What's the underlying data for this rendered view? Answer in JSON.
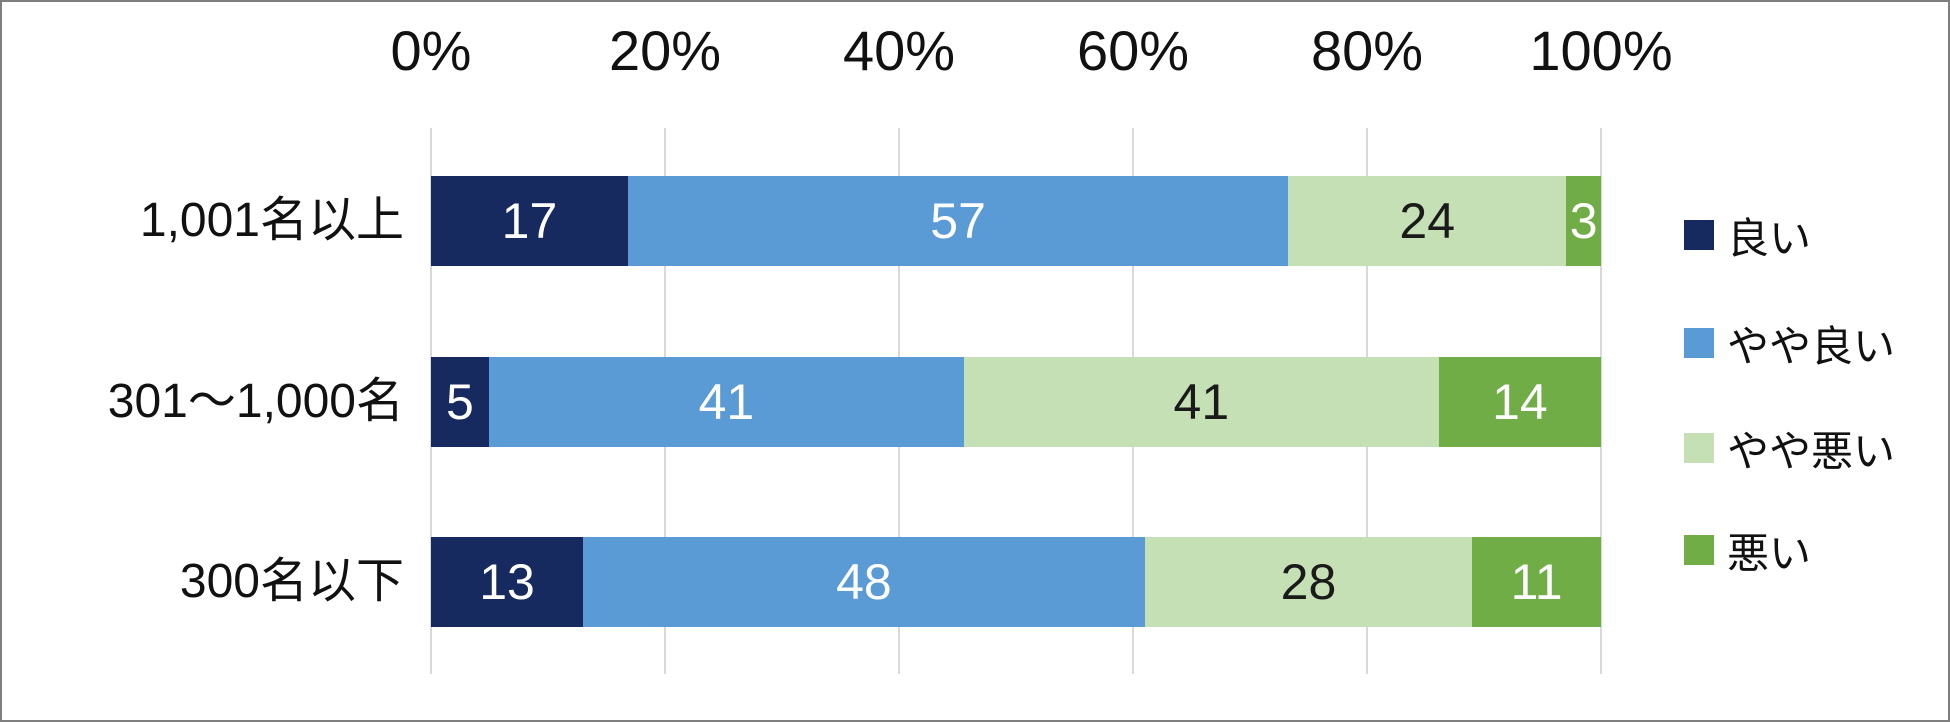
{
  "chart_data": {
    "type": "bar",
    "variant": "horizontal-stacked-100pct",
    "title": "",
    "categories": [
      "1,001名以上",
      "301～1,000名",
      "300名以下"
    ],
    "series": [
      {
        "name": "良い",
        "color": "#162A5F",
        "label_color": "#FFFFFF",
        "values": [
          17,
          5,
          13
        ]
      },
      {
        "name": "やや良い",
        "color": "#5B9BD5",
        "label_color": "#FFFFFF",
        "values": [
          57,
          41,
          48
        ]
      },
      {
        "name": "やや悪い",
        "color": "#C5E0B4",
        "label_color": "#1A1A1A",
        "values": [
          24,
          41,
          28
        ]
      },
      {
        "name": "悪い",
        "color": "#70AD47",
        "label_color": "#FFFFFF",
        "values": [
          3,
          14,
          11
        ]
      }
    ],
    "x_axis": {
      "position": "top",
      "range_pct": [
        0,
        100
      ],
      "tick_labels": [
        "0%",
        "20%",
        "40%",
        "60%",
        "80%",
        "100%"
      ]
    },
    "legend": {
      "position": "right",
      "entries": [
        "良い",
        "やや良い",
        "やや悪い",
        "悪い"
      ]
    },
    "layout_hints": {
      "grid": "vertical-major-only",
      "gridline_color": "#D9D9D9",
      "frame_border_color": "#7F7F7F",
      "background": "#FFFFFF",
      "value_labels": "inside-center"
    }
  }
}
